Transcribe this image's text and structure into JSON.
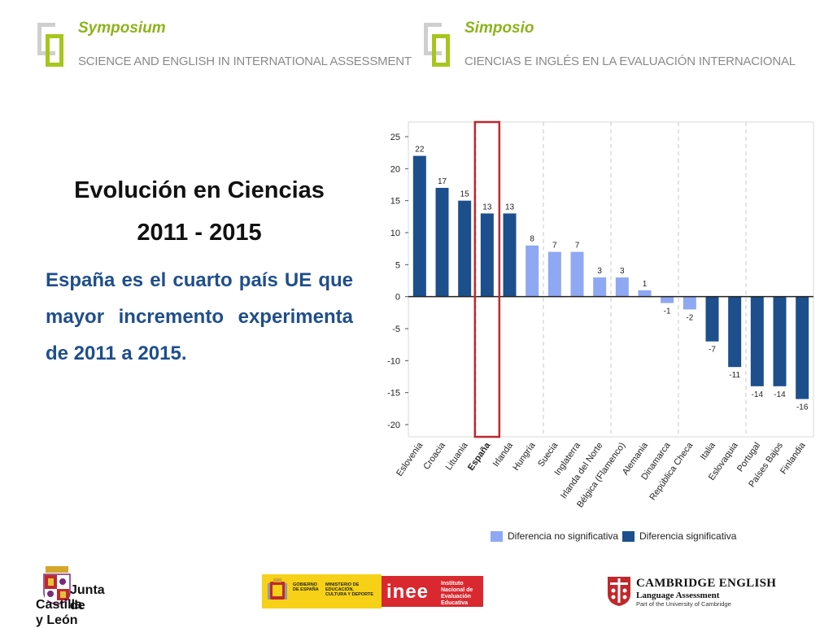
{
  "header": {
    "left": {
      "symposium": "Symposium",
      "subtitle": "SCIENCE AND ENGLISH IN INTERNATIONAL ASSESSMENT"
    },
    "right": {
      "symposium": "Simposio",
      "subtitle": "CIENCIAS E INGLÉS EN LA EVALUACIÓN INTERNACIONAL"
    }
  },
  "main": {
    "title_line1": "Evolución en Ciencias",
    "title_line2": "2011 - 2015",
    "body": "España es el cuarto país UE que mayor incremento experimenta de 2011 a 2015."
  },
  "colors": {
    "significant": "#1c4f8c",
    "not_significant": "#8fa8f3",
    "highlight": "#c0282d",
    "accent_green": "#a6c61c"
  },
  "chart_data": {
    "type": "bar",
    "categories": [
      "Eslovenia",
      "Croacia",
      "Lituania",
      "España",
      "Irlanda",
      "Hungría",
      "Suecia",
      "Inglaterra",
      "Irlanda del Norte",
      "Bélgica (Flamenco)",
      "Alemania",
      "Dinamarca",
      "República Checa",
      "Italia",
      "Eslovaquia",
      "Portugal",
      "Países Bajos",
      "Finlandia"
    ],
    "values": [
      22,
      17,
      15,
      13,
      13,
      8,
      7,
      7,
      3,
      3,
      1,
      -1,
      -2,
      -7,
      -11,
      -14,
      -14,
      -16
    ],
    "significant": [
      true,
      true,
      true,
      true,
      true,
      false,
      false,
      false,
      false,
      false,
      false,
      false,
      false,
      true,
      true,
      true,
      true,
      true
    ],
    "highlighted_category": "España",
    "ylim": [
      -20,
      25
    ],
    "yticks": [
      25,
      20,
      15,
      10,
      5,
      0,
      -5,
      -10,
      -15,
      -20
    ],
    "grid": "vertical dashed",
    "legend": [
      "Diferencia no significativa",
      "Diferencia significativa"
    ],
    "legend_position": "bottom"
  },
  "footer": {
    "jcyl": {
      "line1": "Junta de",
      "line2": "Castilla y León"
    },
    "gov": {
      "gobierno": "GOBIERNO DE ESPAÑA",
      "ministerio": "MINISTERIO DE EDUCACIÓN, CULTURA Y DEPORTE",
      "inee": "inee",
      "inee_full": "Instituto Nacional de Evaluación Educativa"
    },
    "cambridge": {
      "line1": "CAMBRIDGE ENGLISH",
      "line2": "Language Assessment",
      "line3": "Part of the University of Cambridge"
    }
  }
}
